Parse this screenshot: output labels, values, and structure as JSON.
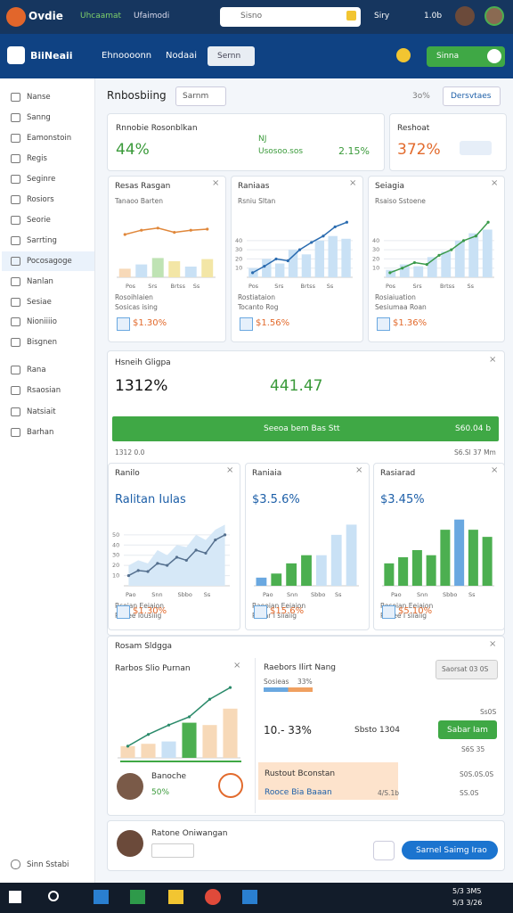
{
  "topbar": {
    "brand": "Ovdie",
    "brand_sub": "Uhcaamat",
    "title": "Ufaimodi",
    "search": "Sisno",
    "user": "Siry",
    "version": "1.0b"
  },
  "navbar": {
    "logo": "BiiNeaii",
    "links": [
      "Ehnoooonn",
      "Nodaai"
    ],
    "button": "Sernn",
    "toggle": "Sinna"
  },
  "sidebar": {
    "items": [
      "Nanse",
      "Sanng",
      "Eamonstoin",
      "Regis",
      "Seginre",
      "Rosiors",
      "Seorie",
      "Sarrting",
      "Pocosagoge",
      "Nanlan",
      "Sesiae",
      "Nioniiiio",
      "Bisgnen",
      "Rana",
      "Rsaosian",
      "Natsiait",
      "Barhan"
    ],
    "footer": "Sinn Sstabi"
  },
  "header": {
    "title": "Rnbosbiing",
    "filter": "Sarnm",
    "count": "3o%",
    "button": "Dersvtaes"
  },
  "kpi": [
    {
      "title": "Rnnobie Rosonblkan",
      "value": "44%",
      "tag": "NJ",
      "sub": "Usosoo.sos",
      "change": "2.15%"
    },
    {
      "title": "Reshoat",
      "value": "372%"
    }
  ],
  "panels": [
    {
      "title": "Resas Rasgan",
      "subtitle": "Tanaoo Barten",
      "x_labels": [
        "Pos",
        "Srs",
        "Brtss",
        "Ss"
      ],
      "footer": "Rosoihlaien",
      "footer2": "Sosicas ising",
      "value": "$1.30%",
      "chart": {
        "bars": [
          8,
          12,
          18,
          15,
          10,
          17
        ],
        "bar_colors": [
          "#f7d9b8",
          "#c9e1f5",
          "#bfe3b4",
          "#f3e6a6",
          "#c9e1f5",
          "#f3e6a6"
        ],
        "line": [
          40,
          44,
          46,
          42,
          44,
          45
        ],
        "line_color": "#e0873a",
        "ylim": [
          0,
          60
        ]
      }
    },
    {
      "title": "Raniaas",
      "subtitle": "Rsniu Sltan",
      "x_labels": [
        "Pos",
        "Srs",
        "Brtss",
        "Ss"
      ],
      "footer": "Rostiataion",
      "footer2": "Tocanto Rog",
      "value": "$1.56%",
      "chart": {
        "bars": [
          10,
          20,
          15,
          30,
          25,
          40,
          45,
          42
        ],
        "bar_colors": [
          "#c9e1f5"
        ],
        "line": [
          5,
          12,
          20,
          18,
          30,
          38,
          45,
          55,
          60
        ],
        "line_color": "#2b6cb0",
        "ylim": [
          0,
          70
        ],
        "yticks": [
          10,
          20,
          30,
          40
        ]
      }
    },
    {
      "title": "Seiagia",
      "subtitle": "Rsaiso Sstoene",
      "x_labels": [
        "Pos",
        "Srs",
        "Brtss",
        "Ss"
      ],
      "footer": "Rosiaiuation",
      "footer2": "Sesiumaa Roan",
      "value": "$1.36%",
      "chart": {
        "bars": [
          8,
          14,
          12,
          22,
          28,
          40,
          48,
          52
        ],
        "bar_colors": [
          "#c9e1f5"
        ],
        "line": [
          5,
          10,
          16,
          14,
          24,
          30,
          40,
          45,
          60
        ],
        "line_color": "#3a9a4a",
        "ylim": [
          0,
          70
        ],
        "yticks": [
          10,
          20,
          30,
          40
        ]
      }
    }
  ],
  "summary": {
    "title": "Hsneih Gligpa",
    "value": "1312%",
    "value2": "441.47",
    "bar_text": "Seeoa bem Bas Stt",
    "bar_value": "S60.04 b",
    "left_note": "1312 0.0",
    "right_note": "S6.Sl 37 Mm"
  },
  "panels2": [
    {
      "title": "Ranilo",
      "subtitle": "Ralitan Iulas",
      "x_labels": [
        "Pao",
        "Snn",
        "Sbbo",
        "Ss"
      ],
      "footer": "Rsoian Eeiaion",
      "footer2": "Raoee Iousiiig",
      "value": "$1.30%",
      "chart": {
        "area": [
          20,
          25,
          22,
          35,
          30,
          40,
          38,
          50,
          45,
          55,
          60
        ],
        "line": [
          10,
          15,
          14,
          22,
          20,
          28,
          25,
          35,
          32,
          45,
          50
        ],
        "line_color": "#55708f",
        "ylim": [
          0,
          70
        ],
        "yticks": [
          10,
          20,
          30,
          40,
          50
        ]
      }
    },
    {
      "title": "Raniaia",
      "subtitle": "$3.5.6%",
      "x_labels": [
        "Pao",
        "Snn",
        "Sbbo",
        "Ss"
      ],
      "footer": "Raeoian Eeiaion",
      "footer2": "Rsoar I siiaiig",
      "value": "$15.6%",
      "chart": {
        "bars": [
          8,
          12,
          22,
          30,
          30,
          50,
          60
        ],
        "bar_colors": [
          "#6aa8e0",
          "#4caf50",
          "#4caf50",
          "#4caf50",
          "#c9e1f5",
          "#c9e1f5",
          "#c9e1f5"
        ],
        "ylim": [
          0,
          70
        ]
      }
    },
    {
      "title": "Rasiarad",
      "subtitle": "$3.45%",
      "x_labels": [
        "Pao",
        "Snn",
        "Sbbo",
        "Ss"
      ],
      "footer": "Rosoian Eeiaion",
      "footer2": "Raoee I siiaiig",
      "value": "$5.10%",
      "chart": {
        "bars": [
          22,
          28,
          35,
          30,
          55,
          65,
          55,
          48
        ],
        "bar_colors": [
          "#4caf50",
          "#4caf50",
          "#4caf50",
          "#4caf50",
          "#4caf50",
          "#6aa8e0",
          "#4caf50",
          "#4caf50"
        ],
        "ylim": [
          0,
          70
        ]
      }
    }
  ],
  "detail": {
    "title": "Rosam Sldgga",
    "chart_title": "Rarbos Slio Purnan",
    "chart": {
      "bars": [
        10,
        12,
        14,
        30,
        28,
        42
      ],
      "bar_colors": [
        "#f7d9b8",
        "#f7d9b8",
        "#c9e1f5",
        "#4caf50",
        "#f7d9b8",
        "#f7d9b8"
      ],
      "line": [
        10,
        20,
        28,
        35,
        50,
        60
      ],
      "line_color": "#2a8a6a",
      "ylim": [
        0,
        70
      ]
    },
    "person": "Banoche",
    "person_value": "50%",
    "list_title": "Raebors Ilirt Nang",
    "list_sub": "Sosieas",
    "list_sub_value": "33%",
    "select": "Saorsat 03 0S",
    "note": "Ss0S",
    "value": "10.- 33%",
    "mid": "Sbsto 1304",
    "button": "Sabar Iam",
    "right_note": "S6S 35",
    "band_title": "Rustout Bconstan",
    "band_sub": "Rooce Bia Baaan",
    "band_value": "4/S.1b",
    "band_right": "S0S.0S.0S",
    "band_right2": "SS.0S"
  },
  "footer_card": {
    "name": "Ratone Oniwangan",
    "button": "Sarnel Saimg Irao"
  },
  "taskbar": {
    "time": "5/3 3M5",
    "date": "5/3 3/26"
  }
}
